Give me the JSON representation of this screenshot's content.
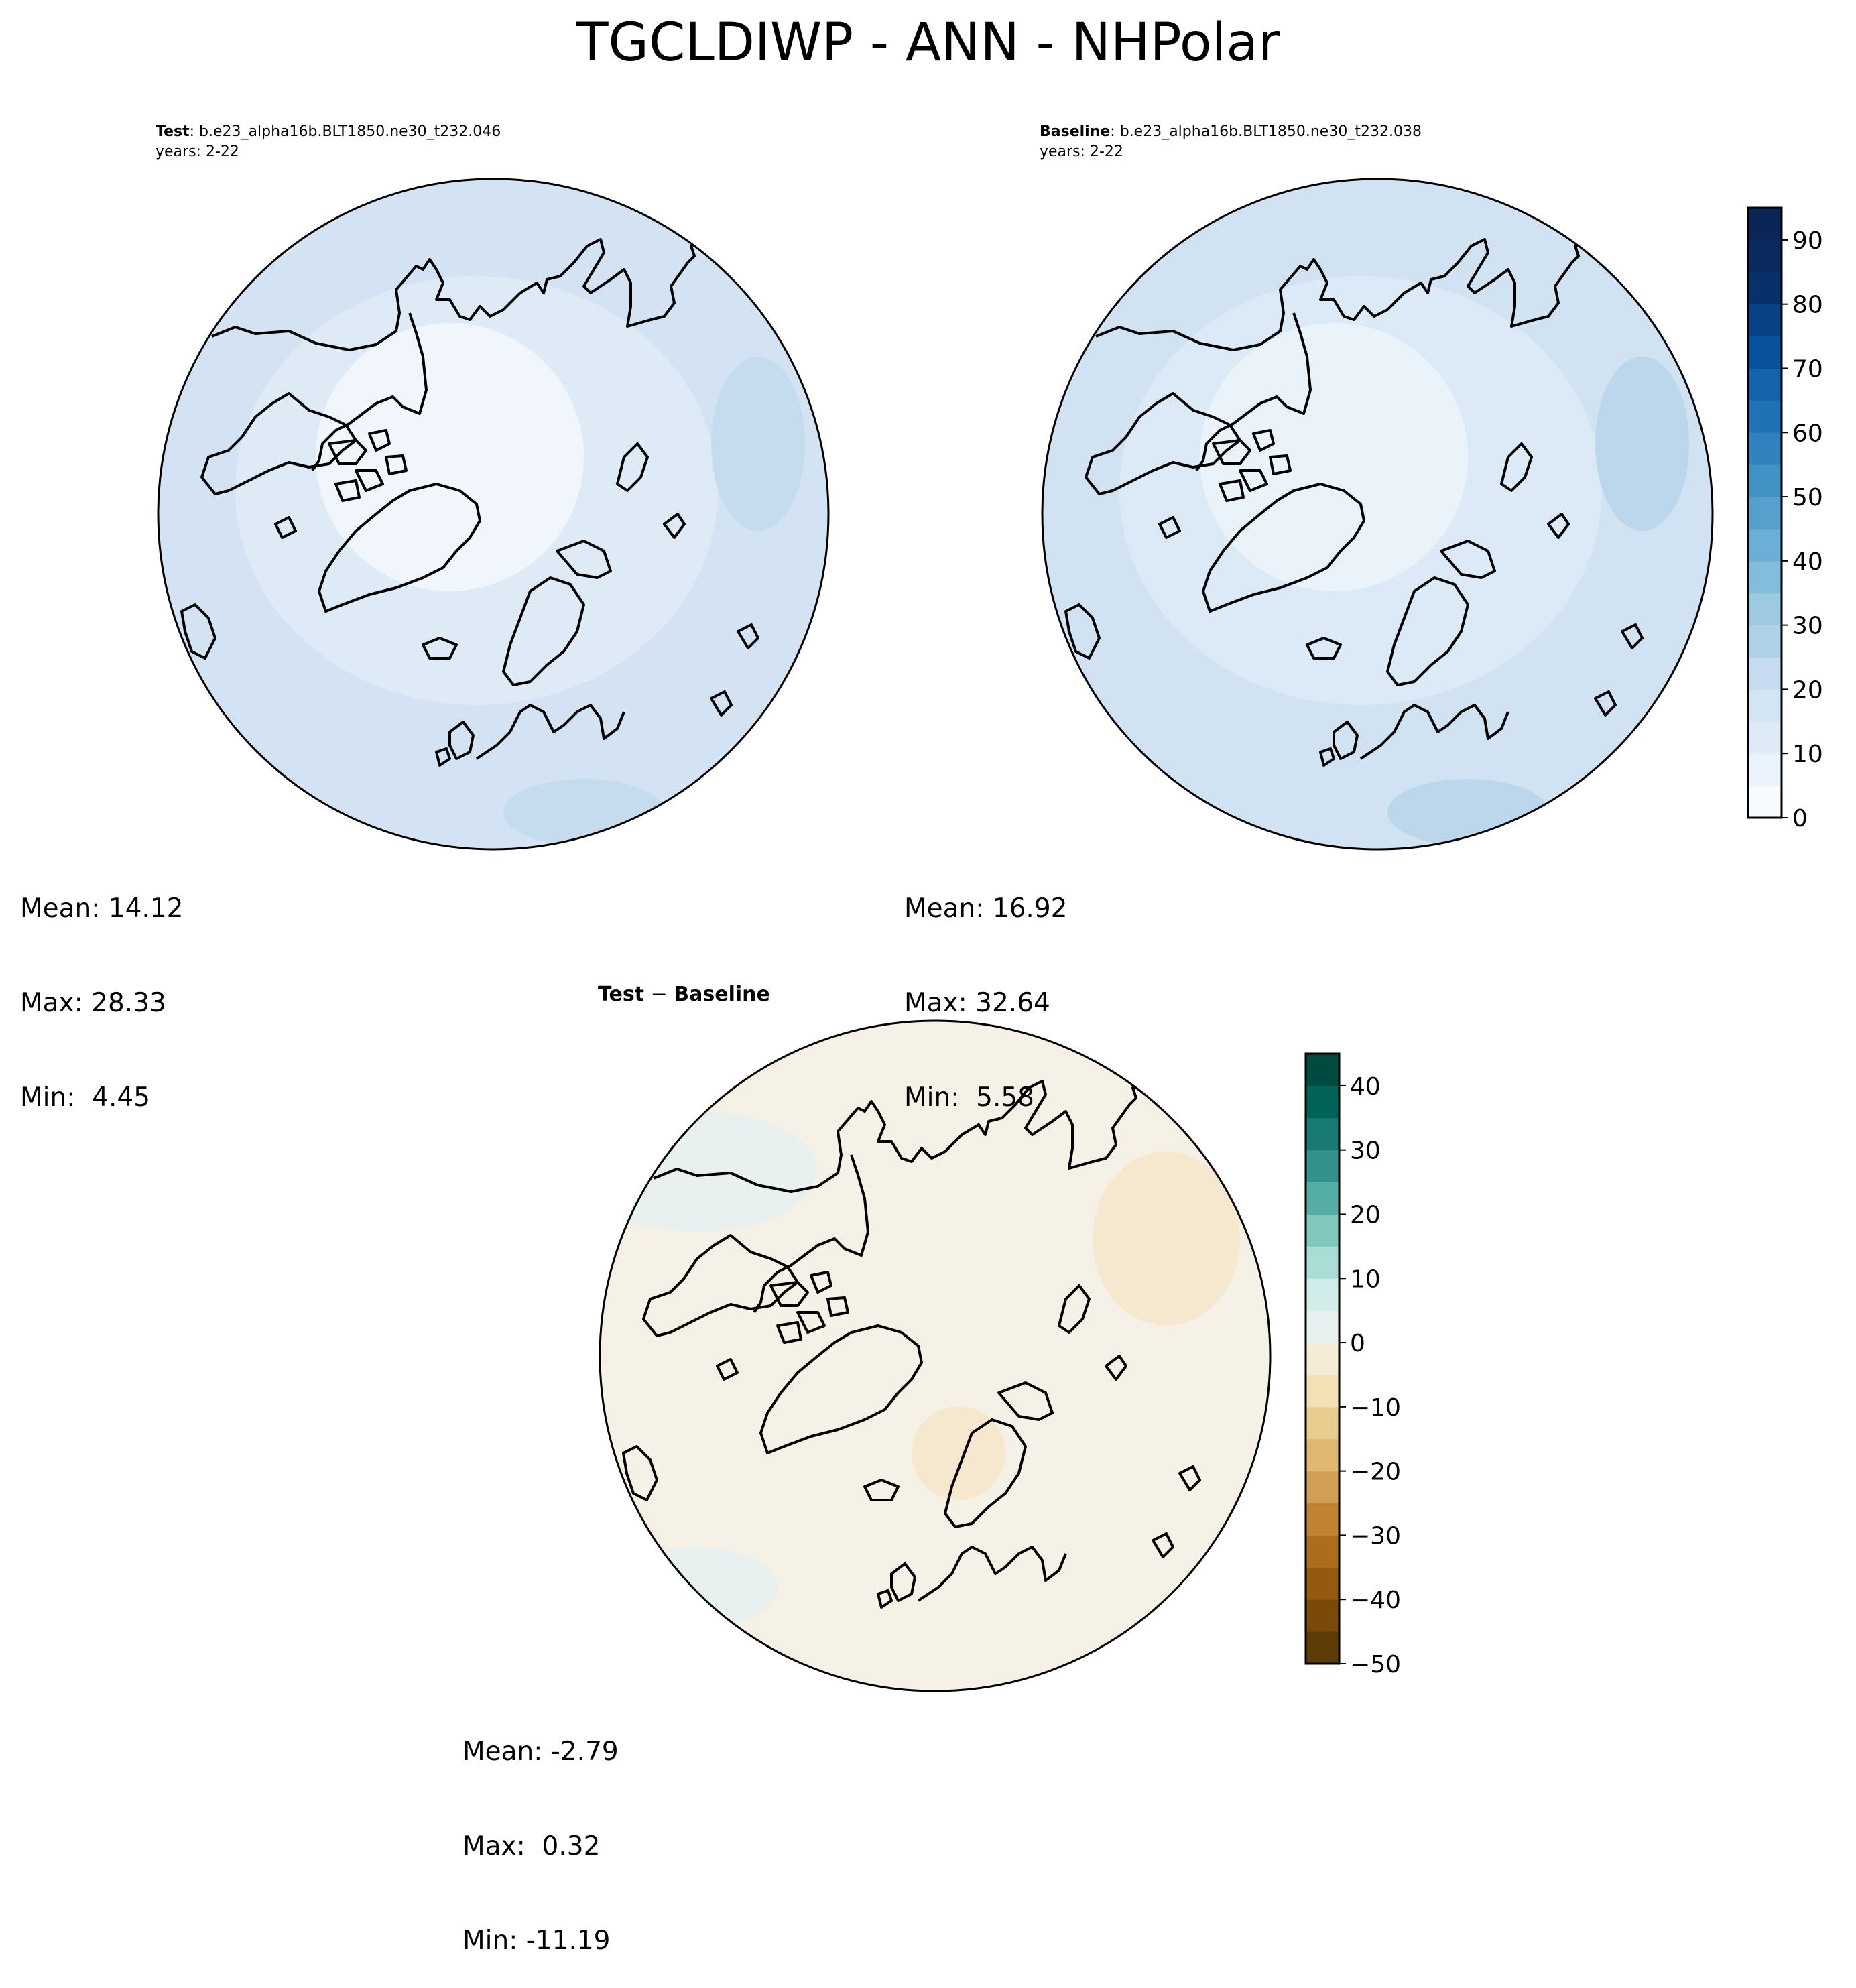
{
  "title": "TGCLDIWP - ANN - NHPolar",
  "panels": {
    "test": {
      "label": "Test",
      "case": ": b.e23_alpha16b.BLT1850.ne30_t232.046",
      "years": "years: 2-22",
      "mean": "Mean: 14.12",
      "max": "Max: 28.33",
      "min": "Min:  4.45"
    },
    "baseline": {
      "label": "Baseline",
      "case": ": b.e23_alpha16b.BLT1850.ne30_t232.038",
      "years": "years: 2-22",
      "mean": "Mean: 16.92",
      "max": "Max: 32.64",
      "min": "Min:  5.58"
    },
    "diff": {
      "title_left": "Test",
      "title_sep": " − ",
      "title_right": "Baseline",
      "mean": "Mean: -2.79",
      "max": "Max:  0.32",
      "min": "Min: -11.19"
    }
  },
  "colorbars": {
    "main": {
      "min": 0,
      "max": 95,
      "step": 5,
      "ticks": [
        "0",
        "10",
        "20",
        "30",
        "40",
        "50",
        "60",
        "70",
        "80",
        "90"
      ],
      "colors": [
        "#f7fbff",
        "#eaf3fb",
        "#deebf7",
        "#d3e4f3",
        "#c6dbef",
        "#b0d2e7",
        "#9ecae1",
        "#84bcdb",
        "#6baed6",
        "#57a0ce",
        "#4292c6",
        "#3181bd",
        "#2171b5",
        "#1563aa",
        "#08519c",
        "#084285",
        "#08306b",
        "#0a2a5e",
        "#0b2557"
      ]
    },
    "diff": {
      "min": -50,
      "max": 45,
      "step": 5,
      "ticks": [
        "−50",
        "−40",
        "−30",
        "−20",
        "−10",
        "0",
        "10",
        "20",
        "30",
        "40"
      ],
      "colors": [
        "#5e3c08",
        "#7a4a0b",
        "#955a0f",
        "#ae6d1e",
        "#c28234",
        "#d09e55",
        "#dfb76f",
        "#e8cd8f",
        "#f3e0b5",
        "#f5ecd8",
        "#e9f1f0",
        "#d0ede9",
        "#a9ddd6",
        "#80c9bc",
        "#54aea3",
        "#33928a",
        "#187a70",
        "#016358",
        "#004b3f"
      ]
    }
  },
  "map_colors": {
    "test": {
      "ocean_south": "#d4e3f3",
      "mid": "#deebf7",
      "arctic": "#f0f6fc",
      "patch": "#c5dcef"
    },
    "baseline": {
      "ocean_south": "#d1e2f2",
      "mid": "#dce9f6",
      "arctic": "#eaf2fa",
      "patch": "#bcd6ec"
    },
    "diff": {
      "base": "#f5f1e7",
      "neg": "#f5e8cf",
      "pos": "#e9f1f0"
    }
  }
}
